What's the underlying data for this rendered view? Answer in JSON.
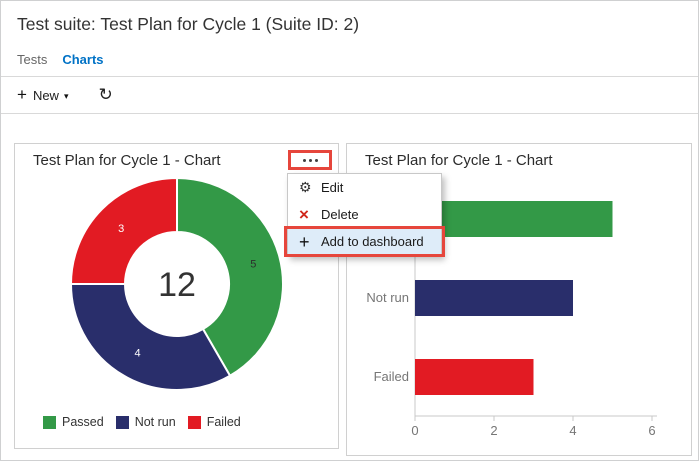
{
  "page": {
    "title": "Test suite: Test Plan for Cycle 1 (Suite ID: 2)",
    "tabs": [
      {
        "label": "Tests",
        "active": false
      },
      {
        "label": "Charts",
        "active": true
      }
    ],
    "toolbar": {
      "new_label": "New"
    }
  },
  "icons": {
    "plus": "+",
    "caret_down": "▾",
    "refresh": "↻",
    "gear": "⚙",
    "delete_x": "×"
  },
  "colors": {
    "passed_green": "#339947",
    "not_run_navy": "#292E6B",
    "failed_red": "#E21B23",
    "accent_blue": "#0072C6",
    "annotation_red": "#E6463C",
    "menu_highlight_bg": "#DEECF9",
    "axis_gray": "#c8c8c8",
    "axis_label_gray": "#767676"
  },
  "chart_data": [
    {
      "type": "pie",
      "subtype": "donut",
      "title": "Test Plan for Cycle 1 - Chart",
      "categories": [
        "Passed",
        "Not run",
        "Failed"
      ],
      "values": [
        5,
        4,
        3
      ],
      "colors": [
        "#339947",
        "#292E6B",
        "#E21B23"
      ],
      "label_colors": [
        "#2d2d2d",
        "#ffffff",
        "#ffffff"
      ],
      "center_total": "12",
      "legend_position": "bottom",
      "start_angle_deg": 0,
      "direction": "clockwise"
    },
    {
      "type": "bar",
      "orientation": "horizontal",
      "title": "Test Plan for Cycle 1 - Chart",
      "categories": [
        "Passed",
        "Not run",
        "Failed"
      ],
      "values": [
        5,
        4,
        3
      ],
      "colors": [
        "#339947",
        "#292E6B",
        "#E21B23"
      ],
      "xlim": [
        0,
        6
      ],
      "x_ticks": [
        0,
        2,
        4,
        6
      ],
      "grid": false,
      "legend_position": "none"
    }
  ],
  "context_menu": {
    "items": [
      {
        "label": "Edit",
        "icon": "gear-icon",
        "highlighted": false
      },
      {
        "label": "Delete",
        "icon": "delete-x-icon",
        "highlighted": false
      },
      {
        "label": "Add to dashboard",
        "icon": "plus-icon",
        "highlighted": true
      }
    ]
  },
  "annotations": {
    "highlight_color": "#E6463C",
    "highlighted_elements": [
      "more-options-button",
      "menu-item-add-to-dashboard"
    ]
  }
}
